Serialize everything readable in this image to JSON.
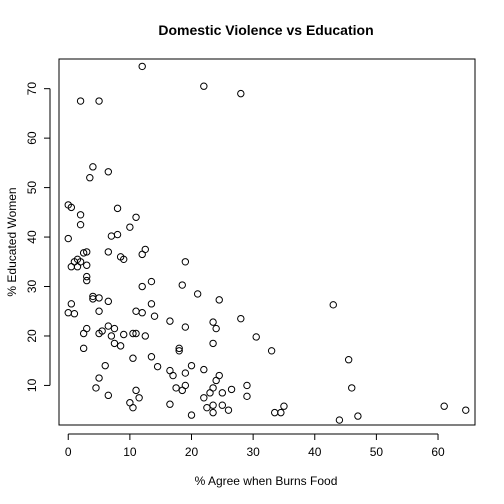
{
  "chart_data": {
    "type": "scatter",
    "title": "Domestic Violence vs Education",
    "xlabel": "% Agree when Burns Food",
    "ylabel": "% Educated Women",
    "xlim": [
      -1.5,
      66
    ],
    "ylim": [
      2,
      76
    ],
    "x_ticks": [
      0,
      10,
      20,
      30,
      40,
      50,
      60
    ],
    "y_ticks": [
      10,
      20,
      30,
      40,
      50,
      60,
      70
    ],
    "grid": false,
    "legend": "none",
    "marker": "open-circle",
    "points": [
      [
        12,
        74.5
      ],
      [
        22,
        70.5
      ],
      [
        28,
        69
      ],
      [
        2,
        67.5
      ],
      [
        5,
        67.5
      ],
      [
        4,
        54.2
      ],
      [
        6.5,
        53.2
      ],
      [
        3.5,
        52
      ],
      [
        0,
        46.5
      ],
      [
        0.5,
        46
      ],
      [
        8,
        45.8
      ],
      [
        2,
        44.5
      ],
      [
        11,
        44
      ],
      [
        2,
        42.5
      ],
      [
        10,
        42
      ],
      [
        0,
        39.7
      ],
      [
        8,
        40.5
      ],
      [
        7,
        40.2
      ],
      [
        3,
        37
      ],
      [
        2.5,
        36.8
      ],
      [
        12.5,
        37.5
      ],
      [
        12,
        36.5
      ],
      [
        8.5,
        36
      ],
      [
        6.5,
        37
      ],
      [
        1,
        35
      ],
      [
        1.5,
        35.5
      ],
      [
        2,
        35
      ],
      [
        0.5,
        34
      ],
      [
        1.5,
        34
      ],
      [
        3,
        34.3
      ],
      [
        19,
        35
      ],
      [
        3,
        32
      ],
      [
        3,
        31.2
      ],
      [
        13.5,
        31
      ],
      [
        9,
        35.5
      ],
      [
        12,
        30
      ],
      [
        18.5,
        30.3
      ],
      [
        4,
        28
      ],
      [
        5,
        27.7
      ],
      [
        4,
        27.5
      ],
      [
        0.5,
        26.5
      ],
      [
        6.5,
        27
      ],
      [
        21,
        28.5
      ],
      [
        24.5,
        27.3
      ],
      [
        43,
        26.3
      ],
      [
        5,
        25
      ],
      [
        0,
        24.7
      ],
      [
        1,
        24.5
      ],
      [
        12,
        24.7
      ],
      [
        14,
        24
      ],
      [
        11,
        25
      ],
      [
        13.5,
        26.5
      ],
      [
        28,
        23.5
      ],
      [
        23.5,
        22.8
      ],
      [
        16.5,
        23
      ],
      [
        3,
        21.5
      ],
      [
        6.5,
        22
      ],
      [
        7.5,
        21.5
      ],
      [
        5.5,
        21
      ],
      [
        5,
        20.5
      ],
      [
        7,
        20
      ],
      [
        9,
        20.3
      ],
      [
        10.5,
        20.5
      ],
      [
        11,
        20.5
      ],
      [
        12.5,
        20
      ],
      [
        19,
        21.8
      ],
      [
        24,
        21.5
      ],
      [
        30.5,
        19.8
      ],
      [
        2.5,
        20.5
      ],
      [
        2.5,
        17.5
      ],
      [
        7.5,
        18.5
      ],
      [
        8.5,
        18
      ],
      [
        23.5,
        18.5
      ],
      [
        18,
        17.5
      ],
      [
        18,
        17
      ],
      [
        33,
        17
      ],
      [
        10.5,
        15.5
      ],
      [
        13.5,
        15.8
      ],
      [
        45.5,
        15.2
      ],
      [
        6,
        14
      ],
      [
        14.5,
        13.8
      ],
      [
        20,
        14
      ],
      [
        16.5,
        13
      ],
      [
        17,
        12
      ],
      [
        19,
        12.5
      ],
      [
        22,
        13.2
      ],
      [
        24.5,
        12
      ],
      [
        5,
        11.5
      ],
      [
        24,
        11
      ],
      [
        4.5,
        9.5
      ],
      [
        11,
        9
      ],
      [
        17.5,
        9.5
      ],
      [
        19,
        10
      ],
      [
        18.5,
        9
      ],
      [
        23,
        8.5
      ],
      [
        23.5,
        9.5
      ],
      [
        25,
        8.5
      ],
      [
        26.5,
        9.2
      ],
      [
        29,
        10
      ],
      [
        46,
        9.5
      ],
      [
        6.5,
        8
      ],
      [
        11.5,
        7.5
      ],
      [
        22,
        7.5
      ],
      [
        23.5,
        6
      ],
      [
        25,
        6
      ],
      [
        29,
        7.8
      ],
      [
        10,
        6.5
      ],
      [
        10.5,
        5.5
      ],
      [
        16.5,
        6.2
      ],
      [
        22.5,
        5.5
      ],
      [
        23.5,
        4.5
      ],
      [
        26,
        5
      ],
      [
        33.5,
        4.5
      ],
      [
        34.5,
        4.5
      ],
      [
        35,
        5.8
      ],
      [
        20,
        4
      ],
      [
        44,
        3
      ],
      [
        47,
        3.8
      ],
      [
        61,
        5.8
      ],
      [
        64.5,
        5
      ]
    ]
  }
}
